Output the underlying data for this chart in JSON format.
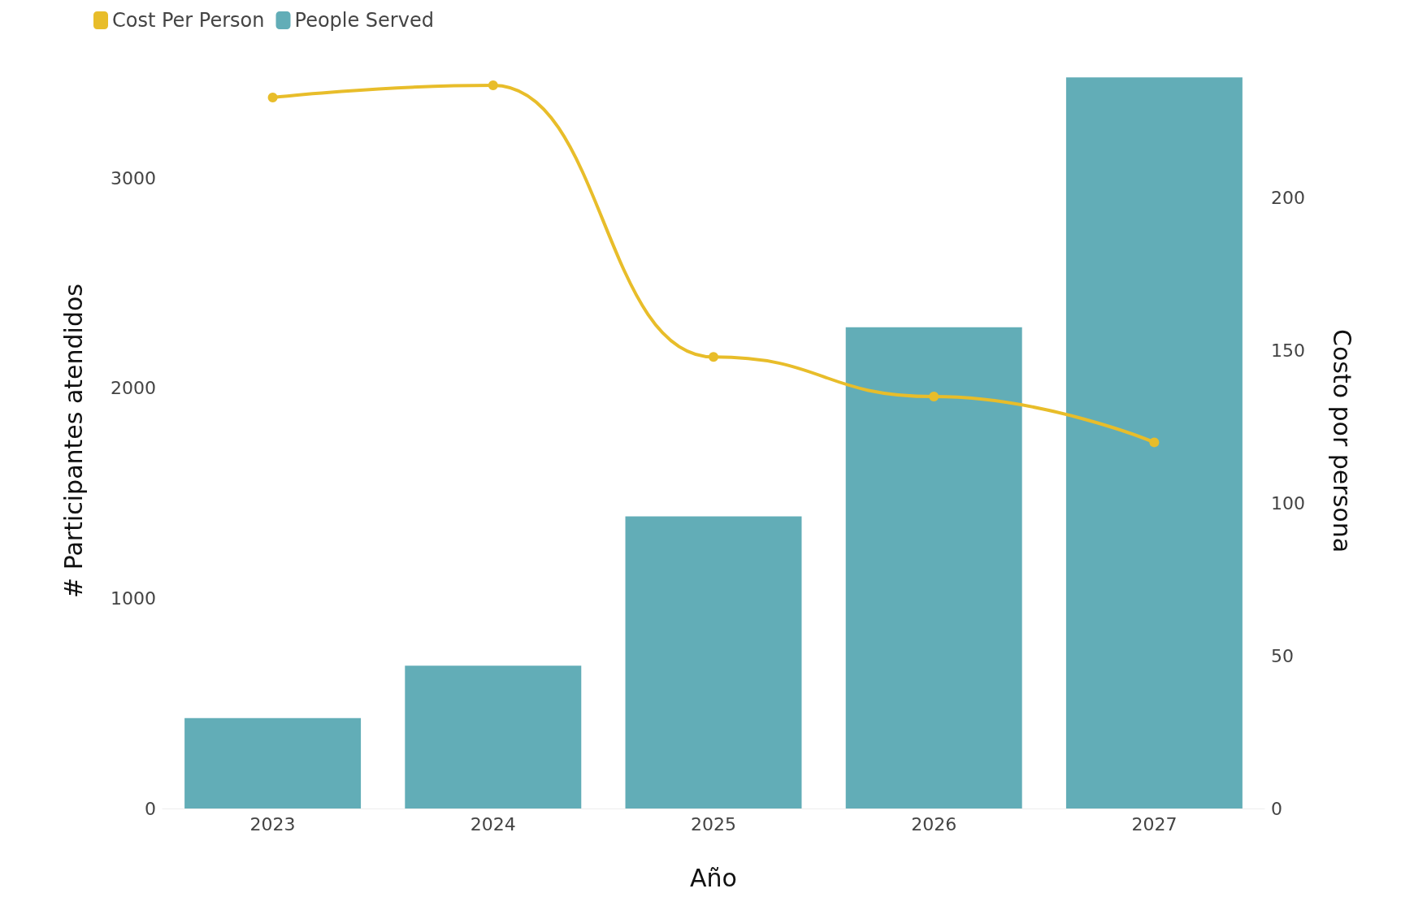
{
  "chart_data": {
    "type": "bar",
    "xlabel": "Año",
    "ylabel": "# Participantes atendidos",
    "y2label": "Costo por persona",
    "categories": [
      "2023",
      "2024",
      "2025",
      "2026",
      "2027"
    ],
    "series": [
      {
        "name": "Cost Per Person",
        "type": "line",
        "axis": "y2",
        "color": "#e8bd2a",
        "values": [
          233,
          237,
          148,
          135,
          120
        ]
      },
      {
        "name": "People Served",
        "color": "#62adb7",
        "values": [
          430,
          680,
          1390,
          2290,
          3480
        ]
      }
    ],
    "ylim": [
      0,
      3500
    ],
    "yticks": [
      0,
      1000,
      2000,
      3000
    ],
    "y2lim": [
      0,
      241
    ],
    "y2ticks": [
      0,
      50,
      100,
      150,
      200
    ],
    "legend": "top left",
    "marker": "circle",
    "grid": false
  }
}
